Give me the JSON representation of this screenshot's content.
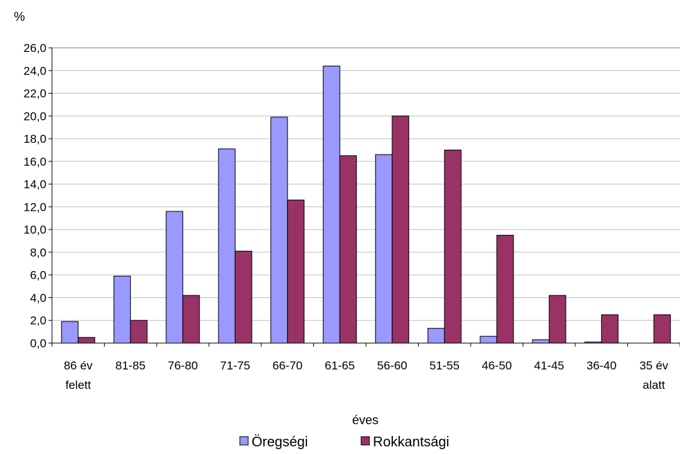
{
  "chart_data": {
    "type": "bar",
    "ylabel": "%",
    "xlabel": "éves",
    "ylim": [
      0,
      26
    ],
    "ytick_step": 2,
    "ytick_labels": [
      "0,0",
      "2,0",
      "4,0",
      "6,0",
      "8,0",
      "10,0",
      "12,0",
      "14,0",
      "16,0",
      "18,0",
      "20,0",
      "22,0",
      "24,0",
      "26,0"
    ],
    "grid": true,
    "legend_position": "bottom",
    "categories": [
      [
        "86 év",
        "felett"
      ],
      [
        "81-85"
      ],
      [
        "76-80"
      ],
      [
        "71-75"
      ],
      [
        "66-70"
      ],
      [
        "61-65"
      ],
      [
        "56-60"
      ],
      [
        "51-55"
      ],
      [
        "46-50"
      ],
      [
        "41-45"
      ],
      [
        "36-40"
      ],
      [
        "35 év",
        "alatt"
      ]
    ],
    "series": [
      {
        "name": "Öregségi",
        "color": "#9999FF",
        "values": [
          1.9,
          5.9,
          11.6,
          17.1,
          19.9,
          24.4,
          16.6,
          1.3,
          0.6,
          0.3,
          0.1,
          0.0
        ]
      },
      {
        "name": "Rokkantsági",
        "color": "#993366",
        "values": [
          0.5,
          2.0,
          4.2,
          8.1,
          12.6,
          16.5,
          20.0,
          17.0,
          9.5,
          4.2,
          2.5,
          2.5
        ]
      }
    ]
  }
}
